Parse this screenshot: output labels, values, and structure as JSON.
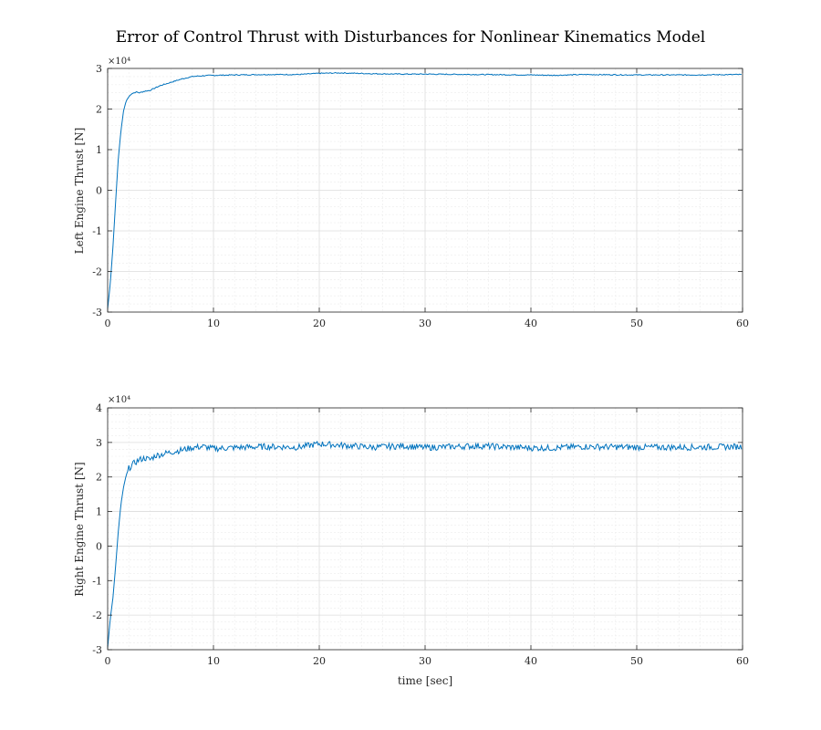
{
  "chart_data": [
    {
      "type": "line",
      "title": "Error of Control Thrust with Disturbances for Nonlinear Kinematics Model",
      "xlabel": "",
      "ylabel": "Left Engine Thrust  [N]",
      "exponent_label": "×10⁴",
      "xlim": [
        0,
        60
      ],
      "ylim": [
        -3,
        3
      ],
      "x_ticks": [
        0,
        10,
        20,
        30,
        40,
        50,
        60
      ],
      "y_ticks": [
        -3,
        -2,
        -1,
        0,
        1,
        2,
        3
      ],
      "grid": true,
      "minor_grid": true,
      "color": "#0072bd",
      "series": [
        {
          "x": [
            0,
            0.25,
            0.5,
            0.75,
            1.0,
            1.25,
            1.5,
            1.75,
            2.0,
            2.25,
            2.5,
            2.75,
            3.0,
            3.5,
            4.0,
            4.5,
            5.0,
            6.0,
            7.0,
            8.0,
            9.0,
            10.0,
            12.0,
            15.0,
            18.0,
            20.0,
            22.0,
            25.0,
            28.0,
            30.0,
            35.0,
            40.0,
            42.0,
            45.0,
            50.0,
            55.0,
            60.0
          ],
          "y": [
            -2.92,
            -2.3,
            -1.4,
            -0.3,
            0.75,
            1.45,
            1.95,
            2.2,
            2.3,
            2.38,
            2.4,
            2.42,
            2.4,
            2.44,
            2.46,
            2.52,
            2.58,
            2.66,
            2.74,
            2.8,
            2.82,
            2.83,
            2.84,
            2.85,
            2.85,
            2.88,
            2.89,
            2.87,
            2.86,
            2.86,
            2.85,
            2.84,
            2.83,
            2.85,
            2.84,
            2.84,
            2.85
          ]
        }
      ]
    },
    {
      "type": "line",
      "title": "",
      "xlabel": "time [sec]",
      "ylabel": "Right Engine Thrust  [N]",
      "exponent_label": "×10⁴",
      "xlim": [
        0,
        60
      ],
      "ylim": [
        -3,
        4
      ],
      "x_ticks": [
        0,
        10,
        20,
        30,
        40,
        50,
        60
      ],
      "y_ticks": [
        -3,
        -2,
        -1,
        0,
        1,
        2,
        3,
        4
      ],
      "grid": true,
      "minor_grid": true,
      "color": "#0072bd",
      "series": [
        {
          "x": [
            0,
            0.25,
            0.5,
            0.75,
            1.0,
            1.25,
            1.5,
            1.75,
            2.0,
            2.5,
            3.0,
            3.5,
            4.0,
            4.5,
            5.0,
            6.0,
            7.0,
            8.0,
            9.0,
            10.0,
            12.0,
            15.0,
            18.0,
            20.0,
            22.0,
            25.0,
            28.0,
            30.0,
            35.0,
            40.0,
            42.0,
            45.0,
            50.0,
            55.0,
            60.0
          ],
          "y": [
            -2.95,
            -2.1,
            -1.5,
            -0.6,
            0.4,
            1.2,
            1.7,
            2.05,
            2.25,
            2.4,
            2.5,
            2.55,
            2.5,
            2.62,
            2.65,
            2.72,
            2.78,
            2.85,
            2.88,
            2.82,
            2.85,
            2.88,
            2.86,
            2.96,
            2.92,
            2.86,
            2.9,
            2.85,
            2.9,
            2.84,
            2.84,
            2.88,
            2.86,
            2.86,
            2.88
          ]
        }
      ]
    }
  ]
}
